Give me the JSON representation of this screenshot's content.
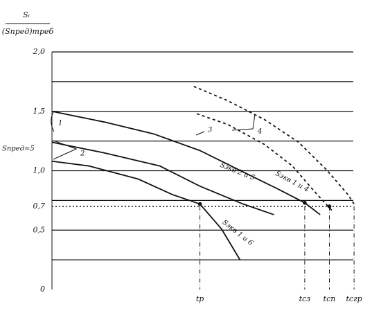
{
  "chart_data": {
    "type": "line",
    "ylabel_top": "Sᵢ",
    "ylabel_bottom": "(Sпред)треб",
    "xlim": [
      0,
      100
    ],
    "ylim": [
      0,
      2.0
    ],
    "yticks": [
      {
        "value": 0,
        "label": "0"
      },
      {
        "value": 0.5,
        "label": "0,5"
      },
      {
        "value": 0.7,
        "label": "0,7"
      },
      {
        "value": 1.0,
        "label": "1,0"
      },
      {
        "value": 1.5,
        "label": "1,5"
      },
      {
        "value": 2.0,
        "label": "2,0"
      }
    ],
    "grid_lines": [
      0.25,
      0.5,
      0.75,
      1.0,
      1.25,
      1.5,
      1.75,
      2.0
    ],
    "reference_line": 0.7,
    "xticks": [
      {
        "value": 48,
        "label": "tp"
      },
      {
        "value": 82,
        "label": "tсз"
      },
      {
        "value": 90,
        "label": "tсп"
      },
      {
        "value": 98,
        "label": "tсгр"
      }
    ],
    "series": [
      {
        "style": "solid",
        "color": "#111111",
        "x": [
          0,
          17,
          33,
          48,
          62,
          73,
          82,
          87
        ],
        "values": [
          1.5,
          1.41,
          1.31,
          1.17,
          0.99,
          0.85,
          0.73,
          0.63
        ]
      },
      {
        "style": "solid",
        "color": "#111111",
        "x": [
          0,
          17,
          35,
          48,
          62,
          72
        ],
        "values": [
          1.24,
          1.15,
          1.04,
          0.87,
          0.72,
          0.63
        ]
      },
      {
        "style": "solid",
        "color": "#111111",
        "x": [
          0,
          12,
          28,
          39,
          48,
          55,
          61
        ],
        "values": [
          1.08,
          1.04,
          0.93,
          0.8,
          0.72,
          0.51,
          0.25
        ]
      },
      {
        "style": "dashed",
        "color": "#111111",
        "x": [
          46,
          57,
          69,
          80,
          89,
          96,
          98
        ],
        "values": [
          1.71,
          1.59,
          1.43,
          1.24,
          1.01,
          0.8,
          0.72
        ]
      },
      {
        "style": "dashed",
        "color": "#111111",
        "x": [
          47,
          57,
          69,
          78,
          85,
          91
        ],
        "values": [
          1.48,
          1.39,
          1.22,
          1.04,
          0.83,
          0.66
        ]
      }
    ],
    "points": {
      "x": [
        48,
        82,
        90
      ],
      "values": [
        0.72,
        0.73,
        0.7
      ]
    },
    "annotations": [
      "1",
      "2",
      "3",
      "4",
      "Sпред=5",
      "Sэкв 2 и 5",
      "Sэкв 1 и 4",
      "Sэкв 1 и 6"
    ]
  }
}
